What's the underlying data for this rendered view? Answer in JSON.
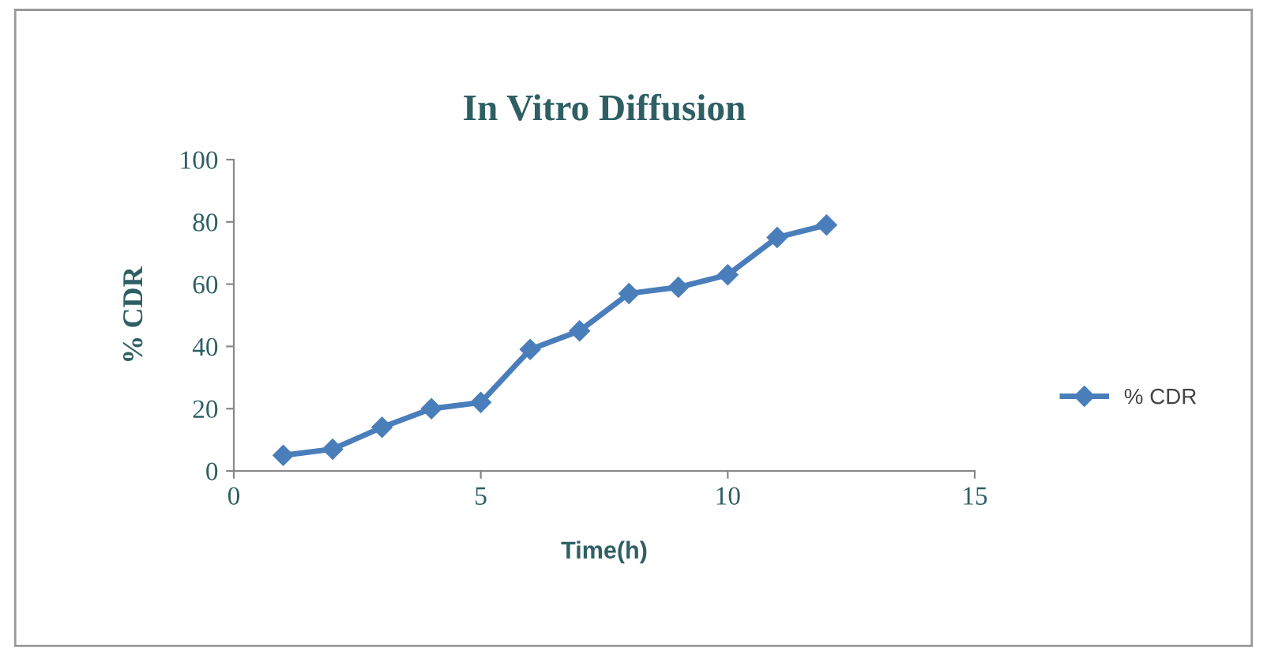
{
  "chart_data": {
    "type": "line",
    "title": "In Vitro Diffusion",
    "xlabel": "Time(h)",
    "ylabel": "% CDR",
    "x": [
      1,
      2,
      3,
      4,
      5,
      6,
      7,
      8,
      9,
      10,
      11,
      12
    ],
    "series": [
      {
        "name": "% CDR",
        "color": "#4a7ebb",
        "values": [
          5,
          7,
          14,
          20,
          22,
          39,
          45,
          57,
          59,
          63,
          75,
          79
        ]
      }
    ],
    "xlim": [
      0,
      15
    ],
    "xticks": [
      0,
      5,
      10,
      15
    ],
    "ylim": [
      0,
      100
    ],
    "yticks": [
      0,
      20,
      40,
      60,
      80,
      100
    ],
    "grid": false,
    "legend": "right",
    "marker": "diamond",
    "line_style": "solid"
  }
}
